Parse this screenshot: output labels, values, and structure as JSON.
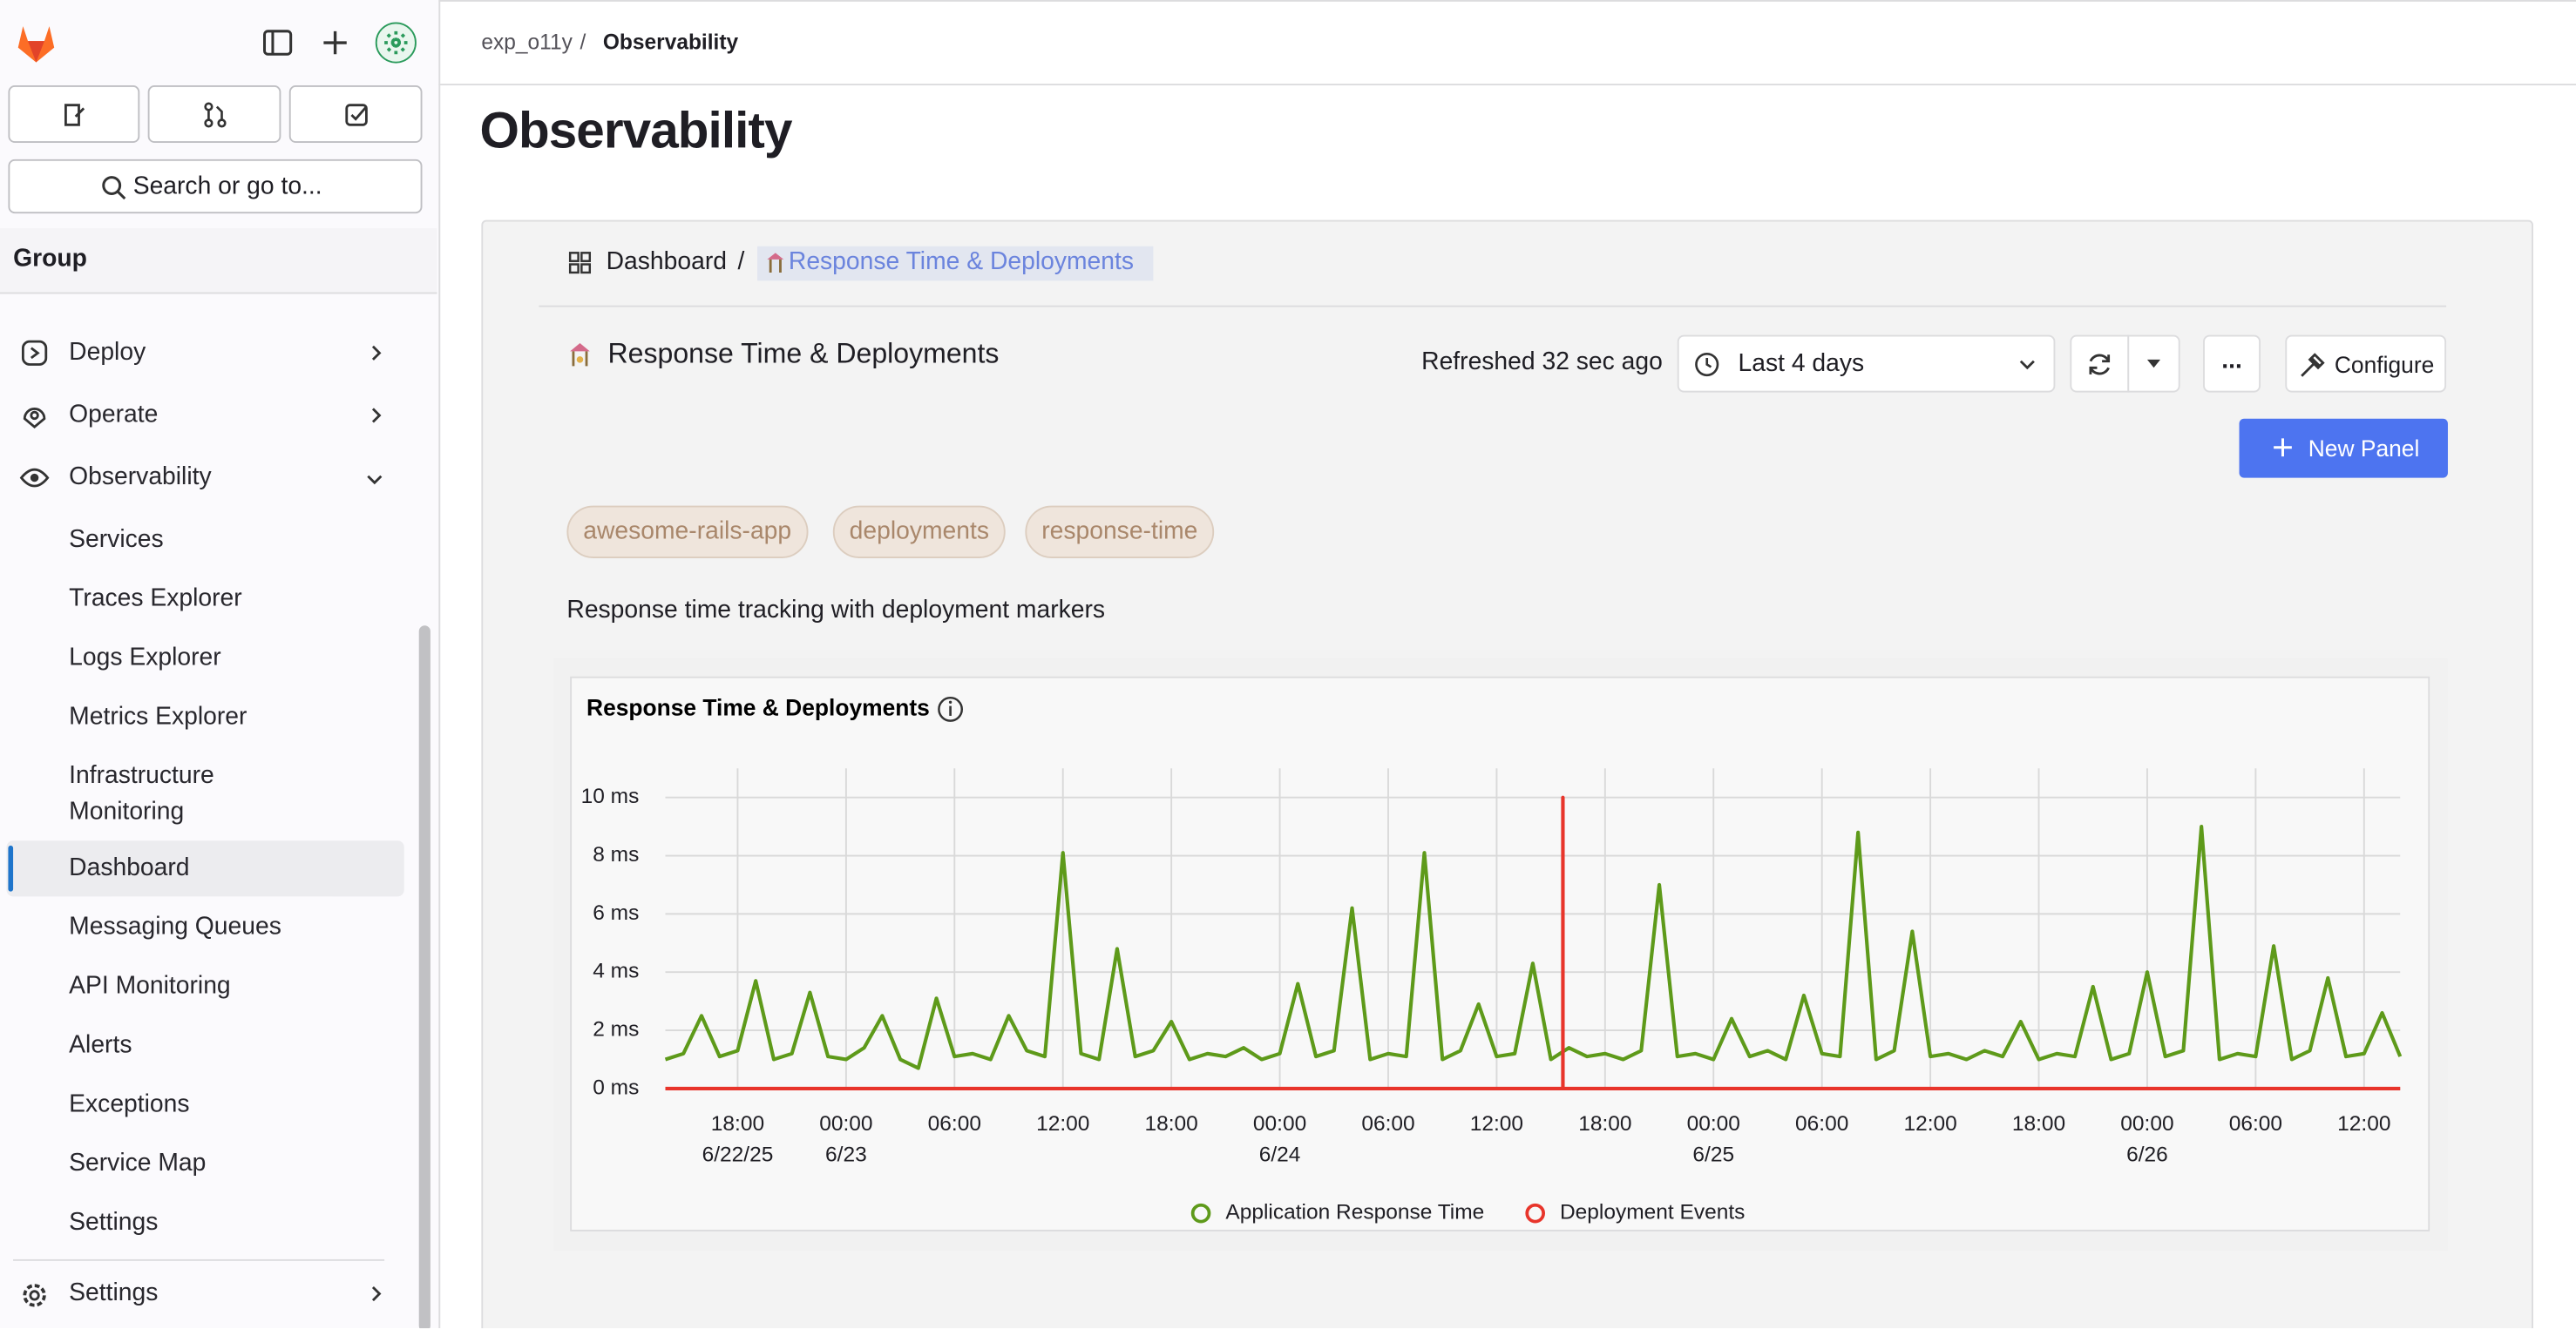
{
  "sidebar": {
    "search": "Search or go to...",
    "context": "Group",
    "menu": [
      "Deploy",
      "Operate",
      "Observability"
    ],
    "submenu": [
      "Services",
      "Traces Explorer",
      "Logs Explorer",
      "Metrics Explorer",
      "Infrastructure Monitoring",
      "Dashboard",
      "Messaging Queues",
      "API Monitoring",
      "Alerts",
      "Exceptions",
      "Service Map",
      "Settings"
    ],
    "footer_menu": [
      "Settings"
    ]
  },
  "header": {
    "breadcrumb": [
      "exp_o11y",
      "Observability"
    ],
    "separator": "/",
    "title": "Observability"
  },
  "dashboard": {
    "breadcrumb": [
      "Dashboard",
      "Response Time & Deployments"
    ],
    "separator": "/",
    "title": "Response Time & Deployments",
    "refreshed": "Refreshed 32 sec ago",
    "time_range": "Last 4 days",
    "more": "...",
    "configure": "Configure",
    "new_panel": "New Panel",
    "tags": [
      "awesome-rails-app",
      "deployments",
      "response-time"
    ],
    "description": "Response time tracking with deployment markers"
  },
  "chart_data": {
    "type": "line",
    "title": "Response Time & Deployments",
    "grid": true,
    "xlim": [
      "2025-06-22T14:00",
      "2025-06-26T14:00"
    ],
    "xticks": [
      {
        "value": "2025-06-22T18:00",
        "label": [
          "18:00",
          "6/22/25"
        ]
      },
      {
        "value": "2025-06-23T00:00",
        "label": [
          "00:00",
          "6/23"
        ]
      },
      {
        "value": "2025-06-23T06:00",
        "label": [
          "06:00"
        ]
      },
      {
        "value": "2025-06-23T12:00",
        "label": [
          "12:00"
        ]
      },
      {
        "value": "2025-06-23T18:00",
        "label": [
          "18:00"
        ]
      },
      {
        "value": "2025-06-24T00:00",
        "label": [
          "00:00",
          "6/24"
        ]
      },
      {
        "value": "2025-06-24T06:00",
        "label": [
          "06:00"
        ]
      },
      {
        "value": "2025-06-24T12:00",
        "label": [
          "12:00"
        ]
      },
      {
        "value": "2025-06-24T18:00",
        "label": [
          "18:00"
        ]
      },
      {
        "value": "2025-06-25T00:00",
        "label": [
          "00:00",
          "6/25"
        ]
      },
      {
        "value": "2025-06-25T06:00",
        "label": [
          "06:00"
        ]
      },
      {
        "value": "2025-06-25T12:00",
        "label": [
          "12:00"
        ]
      },
      {
        "value": "2025-06-25T18:00",
        "label": [
          "18:00"
        ]
      },
      {
        "value": "2025-06-26T00:00",
        "label": [
          "00:00",
          "6/26"
        ]
      },
      {
        "value": "2025-06-26T06:00",
        "label": [
          "06:00"
        ]
      },
      {
        "value": "2025-06-26T12:00",
        "label": [
          "12:00"
        ]
      }
    ],
    "ylim": [
      0,
      11
    ],
    "yticks": [
      {
        "value": 0,
        "label": "0 ms"
      },
      {
        "value": 2,
        "label": "2 ms"
      },
      {
        "value": 4,
        "label": "4 ms"
      },
      {
        "value": 6,
        "label": "6 ms"
      },
      {
        "value": 8,
        "label": "8 ms"
      },
      {
        "value": 10,
        "label": "10 ms"
      }
    ],
    "series": [
      {
        "name": "Application Response Time",
        "color": "#5e9a1a",
        "x": [
          "2025-06-22T14:00",
          "2025-06-22T15:00",
          "2025-06-22T16:00",
          "2025-06-22T17:00",
          "2025-06-22T18:00",
          "2025-06-22T19:00",
          "2025-06-22T20:00",
          "2025-06-22T21:00",
          "2025-06-22T22:00",
          "2025-06-22T23:00",
          "2025-06-23T00:00",
          "2025-06-23T01:00",
          "2025-06-23T02:00",
          "2025-06-23T03:00",
          "2025-06-23T04:00",
          "2025-06-23T05:00",
          "2025-06-23T06:00",
          "2025-06-23T07:00",
          "2025-06-23T08:00",
          "2025-06-23T09:00",
          "2025-06-23T10:00",
          "2025-06-23T11:00",
          "2025-06-23T12:00",
          "2025-06-23T13:00",
          "2025-06-23T14:00",
          "2025-06-23T15:00",
          "2025-06-23T16:00",
          "2025-06-23T17:00",
          "2025-06-23T18:00",
          "2025-06-23T19:00",
          "2025-06-23T20:00",
          "2025-06-23T21:00",
          "2025-06-23T22:00",
          "2025-06-23T23:00",
          "2025-06-24T00:00",
          "2025-06-24T01:00",
          "2025-06-24T02:00",
          "2025-06-24T03:00",
          "2025-06-24T04:00",
          "2025-06-24T05:00",
          "2025-06-24T06:00",
          "2025-06-24T07:00",
          "2025-06-24T08:00",
          "2025-06-24T09:00",
          "2025-06-24T10:00",
          "2025-06-24T11:00",
          "2025-06-24T12:00",
          "2025-06-24T13:00",
          "2025-06-24T14:00",
          "2025-06-24T15:00",
          "2025-06-24T16:00",
          "2025-06-24T17:00",
          "2025-06-24T18:00",
          "2025-06-24T19:00",
          "2025-06-24T20:00",
          "2025-06-24T21:00",
          "2025-06-24T22:00",
          "2025-06-24T23:00",
          "2025-06-25T00:00",
          "2025-06-25T01:00",
          "2025-06-25T02:00",
          "2025-06-25T03:00",
          "2025-06-25T04:00",
          "2025-06-25T05:00",
          "2025-06-25T06:00",
          "2025-06-25T07:00",
          "2025-06-25T08:00",
          "2025-06-25T09:00",
          "2025-06-25T10:00",
          "2025-06-25T11:00",
          "2025-06-25T12:00",
          "2025-06-25T13:00",
          "2025-06-25T14:00",
          "2025-06-25T15:00",
          "2025-06-25T16:00",
          "2025-06-25T17:00",
          "2025-06-25T18:00",
          "2025-06-25T19:00",
          "2025-06-25T20:00",
          "2025-06-25T21:00",
          "2025-06-25T22:00",
          "2025-06-25T23:00",
          "2025-06-26T00:00",
          "2025-06-26T01:00",
          "2025-06-26T02:00",
          "2025-06-26T03:00",
          "2025-06-26T04:00",
          "2025-06-26T05:00",
          "2025-06-26T06:00",
          "2025-06-26T07:00",
          "2025-06-26T08:00",
          "2025-06-26T09:00",
          "2025-06-26T10:00",
          "2025-06-26T11:00",
          "2025-06-26T12:00",
          "2025-06-26T13:00",
          "2025-06-26T14:00"
        ],
        "values": [
          1.0,
          1.2,
          2.5,
          1.1,
          1.3,
          3.7,
          1.0,
          1.2,
          3.3,
          1.1,
          1.0,
          1.4,
          2.5,
          1.0,
          0.7,
          3.1,
          1.1,
          1.2,
          1.0,
          2.5,
          1.3,
          1.1,
          8.1,
          1.2,
          1.0,
          4.8,
          1.1,
          1.3,
          2.3,
          1.0,
          1.2,
          1.1,
          1.4,
          1.0,
          1.2,
          3.6,
          1.1,
          1.3,
          6.2,
          1.0,
          1.2,
          1.1,
          8.1,
          1.0,
          1.3,
          2.9,
          1.1,
          1.2,
          4.3,
          1.0,
          1.4,
          1.1,
          1.2,
          1.0,
          1.3,
          7.0,
          1.1,
          1.2,
          1.0,
          2.4,
          1.1,
          1.3,
          1.0,
          3.2,
          1.2,
          1.1,
          8.8,
          1.0,
          1.3,
          5.4,
          1.1,
          1.2,
          1.0,
          1.3,
          1.1,
          2.3,
          1.0,
          1.2,
          1.1,
          3.5,
          1.0,
          1.2,
          4.0,
          1.1,
          1.3,
          9.0,
          1.0,
          1.2,
          1.1,
          4.9,
          1.0,
          1.3,
          3.8,
          1.1,
          1.2,
          2.6,
          1.1
        ]
      },
      {
        "name": "Deployment Events",
        "color": "#e8352b",
        "x": [
          "2025-06-22T14:00",
          "2025-06-24T15:40",
          "2025-06-24T15:40",
          "2025-06-24T15:40",
          "2025-06-26T14:00"
        ],
        "values": [
          0,
          0,
          10,
          0,
          0
        ]
      }
    ]
  }
}
